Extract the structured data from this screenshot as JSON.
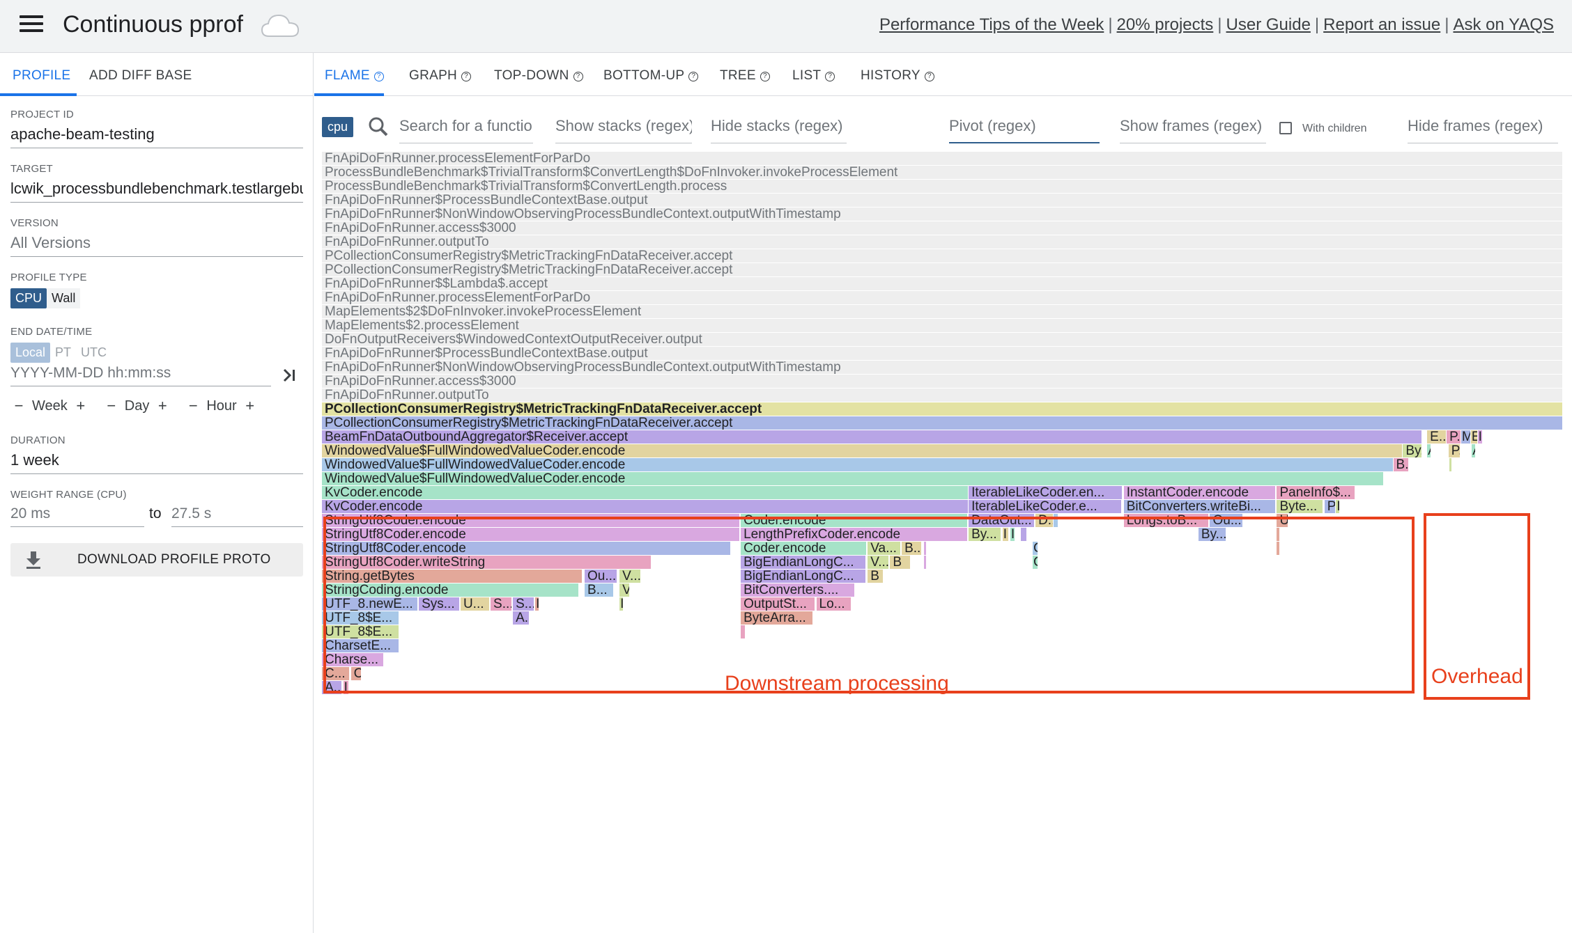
{
  "header": {
    "app_title": "Continuous pprof",
    "links": [
      "Performance Tips of the Week",
      "20% projects",
      "User Guide",
      "Report an issue",
      "Ask on YAQS"
    ],
    "separator": "|"
  },
  "left_tabs": {
    "profile": "PROFILE",
    "diff": "ADD DIFF BASE"
  },
  "fields": {
    "project_id_label": "PROJECT ID",
    "project_id": "apache-beam-testing",
    "target_label": "TARGET",
    "target": "lcwik_processbundlebenchmark.testlargebundle",
    "version_label": "VERSION",
    "version": "All Versions",
    "profile_type_label": "PROFILE TYPE",
    "profile_type_cpu": "CPU",
    "profile_type_wall": "Wall",
    "end_date_label": "END DATE/TIME",
    "tz_local": "Local",
    "tz_pt": "PT",
    "tz_utc": "UTC",
    "date_placeholder": "YYYY-MM-DD hh:mm:ss",
    "step_week": "Week",
    "step_day": "Day",
    "step_hour": "Hour",
    "step_minus": "−",
    "step_plus": "+",
    "duration_label": "DURATION",
    "duration": "1 week",
    "weight_label": "WEIGHT RANGE (CPU)",
    "weight_from": "20 ms",
    "weight_to_label": "to",
    "weight_to": "27.5 s",
    "download": "DOWNLOAD PROFILE PROTO"
  },
  "view_tabs": [
    "FLAME",
    "GRAPH",
    "TOP-DOWN",
    "BOTTOM-UP",
    "TREE",
    "LIST",
    "HISTORY"
  ],
  "active_view_tab": "FLAME",
  "filters": {
    "sample_type": "cpu",
    "search": "Search for a function/file...",
    "show_stacks": "Show stacks (regex)",
    "hide_stacks": "Hide stacks (regex)",
    "pivot": "Pivot (regex)",
    "show_frames": "Show frames (regex)",
    "with_children": "With children",
    "hide_frames": "Hide frames (regex)"
  },
  "annotations": {
    "downstream": "Downstream processing",
    "overhead": "Overhead",
    "color": "#e8401c"
  },
  "flame_colors": {
    "gray": "#eeeeee",
    "yellow": "#e3e2a3",
    "blue": "#a9b7e6",
    "purple": "#b8a5e6",
    "tan": "#e2d4a0",
    "cyan": "#a8c8e8",
    "mint": "#a6e3c8",
    "pink": "#d9a8e0",
    "rose": "#e8a3c0",
    "salmon": "#e3a89a",
    "olive": "#cfe0a1"
  },
  "flame_rows": [
    [
      {
        "l": "FnApiDoFnRunner.processElementForParDo",
        "c": "gray",
        "p": 0,
        "w": 1
      }
    ],
    [
      {
        "l": "ProcessBundleBenchmark$TrivialTransform$ConvertLength$DoFnInvoker.invokeProcessElement",
        "c": "gray",
        "p": 0,
        "w": 1
      }
    ],
    [
      {
        "l": "ProcessBundleBenchmark$TrivialTransform$ConvertLength.process",
        "c": "gray",
        "p": 0,
        "w": 1
      }
    ],
    [
      {
        "l": "FnApiDoFnRunner$ProcessBundleContextBase.output",
        "c": "gray",
        "p": 0,
        "w": 1
      }
    ],
    [
      {
        "l": "FnApiDoFnRunner$NonWindowObservingProcessBundleContext.outputWithTimestamp",
        "c": "gray",
        "p": 0,
        "w": 1
      }
    ],
    [
      {
        "l": "FnApiDoFnRunner.access$3000",
        "c": "gray",
        "p": 0,
        "w": 1
      }
    ],
    [
      {
        "l": "FnApiDoFnRunner.outputTo",
        "c": "gray",
        "p": 0,
        "w": 1
      }
    ],
    [
      {
        "l": "PCollectionConsumerRegistry$MetricTrackingFnDataReceiver.accept",
        "c": "gray",
        "p": 0,
        "w": 1
      }
    ],
    [
      {
        "l": "PCollectionConsumerRegistry$MetricTrackingFnDataReceiver.accept",
        "c": "gray",
        "p": 0,
        "w": 1
      }
    ],
    [
      {
        "l": "FnApiDoFnRunner$$Lambda$.accept",
        "c": "gray",
        "p": 0,
        "w": 1
      }
    ],
    [
      {
        "l": "FnApiDoFnRunner.processElementForParDo",
        "c": "gray",
        "p": 0,
        "w": 1
      }
    ],
    [
      {
        "l": "MapElements$2$DoFnInvoker.invokeProcessElement",
        "c": "gray",
        "p": 0,
        "w": 1
      }
    ],
    [
      {
        "l": "MapElements$2.processElement",
        "c": "gray",
        "p": 0,
        "w": 1
      }
    ],
    [
      {
        "l": "DoFnOutputReceivers$WindowedContextOutputReceiver.output",
        "c": "gray",
        "p": 0,
        "w": 1
      }
    ],
    [
      {
        "l": "FnApiDoFnRunner$ProcessBundleContextBase.output",
        "c": "gray",
        "p": 0,
        "w": 1
      }
    ],
    [
      {
        "l": "FnApiDoFnRunner$NonWindowObservingProcessBundleContext.outputWithTimestamp",
        "c": "gray",
        "p": 0,
        "w": 1
      }
    ],
    [
      {
        "l": "FnApiDoFnRunner.access$3000",
        "c": "gray",
        "p": 0,
        "w": 1
      }
    ],
    [
      {
        "l": "FnApiDoFnRunner.outputTo",
        "c": "gray",
        "p": 0,
        "w": 1
      }
    ],
    [
      {
        "l": "PCollectionConsumerRegistry$MetricTrackingFnDataReceiver.accept",
        "c": "yellow",
        "p": 0,
        "w": 1,
        "b": true
      }
    ],
    [
      {
        "l": "PCollectionConsumerRegistry$MetricTrackingFnDataReceiver.accept",
        "c": "blue",
        "p": 0,
        "w": 1
      }
    ],
    [
      {
        "l": "BeamFnDataOutboundAggregator$Receiver.accept",
        "c": "purple",
        "p": 0,
        "w": 0.8867
      },
      {
        "l": "E...",
        "c": "tan",
        "p": 0.8906,
        "w": 0.0156
      },
      {
        "l": "P...",
        "c": "rose",
        "p": 0.9063,
        "w": 0.0117
      },
      {
        "l": "M",
        "c": "blue",
        "p": 0.918,
        "w": 0.0078
      },
      {
        "l": "E",
        "c": "tan",
        "p": 0.9258,
        "w": 0.0055
      },
      {
        "l": "I",
        "c": "pink",
        "p": 0.9313,
        "w": 0.0039
      }
    ],
    [
      {
        "l": "WindowedValue$FullWindowedValueCoder.encode",
        "c": "tan",
        "p": 0,
        "w": 0.8711
      },
      {
        "l": "By...",
        "c": "olive",
        "p": 0.8711,
        "w": 0.0156
      },
      {
        "l": "A",
        "c": "mint",
        "p": 0.8906,
        "w": 0.0031
      },
      {
        "l": "P...",
        "c": "tan",
        "p": 0.9078,
        "w": 0.0094
      },
      {
        "l": "A",
        "c": "mint",
        "p": 0.9266,
        "w": 0.0031
      }
    ],
    [
      {
        "l": "WindowedValue$FullWindowedValueCoder.encode",
        "c": "cyan",
        "p": 0,
        "w": 0.8633
      },
      {
        "l": "B...",
        "c": "rose",
        "p": 0.8633,
        "w": 0.0125
      },
      {
        "l": "",
        "c": "olive",
        "p": 0.9086,
        "w": 0.0023
      }
    ],
    [
      {
        "l": "WindowedValue$FullWindowedValueCoder.encode",
        "c": "mint",
        "p": 0,
        "w": 0.8555
      }
    ],
    [
      {
        "l": "KvCoder.encode",
        "c": "mint",
        "p": 0,
        "w": 0.5211
      },
      {
        "l": "IterableLikeCoder.en...",
        "c": "purple",
        "p": 0.5211,
        "w": 0.1242
      },
      {
        "l": "InstantCoder.encode",
        "c": "pink",
        "p": 0.6461,
        "w": 0.1227
      },
      {
        "l": "PaneInfo$...",
        "c": "rose",
        "p": 0.7695,
        "w": 0.0633
      }
    ],
    [
      {
        "l": "KvCoder.encode",
        "c": "purple",
        "p": 0,
        "w": 0.5211
      },
      {
        "l": "IterableLikeCoder.e...",
        "c": "purple",
        "p": 0.5211,
        "w": 0.1234
      },
      {
        "l": "BitConverters.writeBi...",
        "c": "blue",
        "p": 0.6461,
        "w": 0.1227
      },
      {
        "l": "Byte...",
        "c": "olive",
        "p": 0.7695,
        "w": 0.0375
      },
      {
        "l": "P",
        "c": "blue",
        "p": 0.8078,
        "w": 0.0094
      },
      {
        "l": "I",
        "c": "olive",
        "p": 0.8172,
        "w": 0.0031
      }
    ],
    [
      {
        "l": "StringUtf8Coder.encode",
        "c": "pink",
        "p": 0,
        "w": 0.3367
      },
      {
        "l": "Coder.encode",
        "c": "mint",
        "p": 0.3375,
        "w": 0.1828
      },
      {
        "l": "DataOut...",
        "c": "purple",
        "p": 0.5211,
        "w": 0.0531
      },
      {
        "l": "D...",
        "c": "tan",
        "p": 0.575,
        "w": 0.0148
      },
      {
        "l": "",
        "c": "cyan",
        "p": 0.5898,
        "w": 0.0039
      },
      {
        "l": "Longs.toB...",
        "c": "rose",
        "p": 0.6461,
        "w": 0.0688
      },
      {
        "l": "Ou...",
        "c": "blue",
        "p": 0.7156,
        "w": 0.0266
      },
      {
        "l": "U",
        "c": "salmon",
        "p": 0.7695,
        "w": 0.0094
      }
    ],
    [
      {
        "l": "StringUtf8Coder.encode",
        "c": "pink",
        "p": 0,
        "w": 0.3367
      },
      {
        "l": "LengthPrefixCoder.encode",
        "c": "pink",
        "p": 0.3375,
        "w": 0.1828
      },
      {
        "l": "By...",
        "c": "olive",
        "p": 0.5211,
        "w": 0.0266
      },
      {
        "l": "I",
        "c": "tan",
        "p": 0.5484,
        "w": 0.0055
      },
      {
        "l": "I",
        "c": "mint",
        "p": 0.5547,
        "w": 0.0039
      },
      {
        "l": "",
        "c": "purple",
        "p": 0.5633,
        "w": 0.0047
      },
      {
        "l": "By...",
        "c": "blue",
        "p": 0.7063,
        "w": 0.0227
      },
      {
        "l": "",
        "c": "salmon",
        "p": 0.7695,
        "w": 0.0023
      }
    ],
    [
      {
        "l": "StringUtf8Coder.encode",
        "c": "blue",
        "p": 0,
        "w": 0.3297
      },
      {
        "l": "Coder.encode",
        "c": "mint",
        "p": 0.3375,
        "w": 0.1016
      },
      {
        "l": "Va...",
        "c": "olive",
        "p": 0.4398,
        "w": 0.0266
      },
      {
        "l": "B...",
        "c": "tan",
        "p": 0.4672,
        "w": 0.0164
      },
      {
        "l": "",
        "c": "pink",
        "p": 0.4852,
        "w": 0.0023
      },
      {
        "l": "C",
        "c": "cyan",
        "p": 0.5727,
        "w": 0.0047
      },
      {
        "l": "",
        "c": "salmon",
        "p": 0.7695,
        "w": 0.0023
      }
    ],
    [
      {
        "l": "StringUtf8Coder.writeString",
        "c": "rose",
        "p": 0,
        "w": 0.2656
      },
      {
        "l": "BigEndianLongC...",
        "c": "purple",
        "p": 0.3375,
        "w": 0.1008
      },
      {
        "l": "V...",
        "c": "olive",
        "p": 0.4398,
        "w": 0.0172
      },
      {
        "l": "B",
        "c": "tan",
        "p": 0.4578,
        "w": 0.0164
      },
      {
        "l": "",
        "c": "pink",
        "p": 0.4852,
        "w": 0.0023
      },
      {
        "l": "C",
        "c": "mint",
        "p": 0.5727,
        "w": 0.0047
      }
    ],
    [
      {
        "l": "String.getBytes",
        "c": "salmon",
        "p": 0,
        "w": 0.2102
      },
      {
        "l": "Ou...",
        "c": "purple",
        "p": 0.2117,
        "w": 0.0266
      },
      {
        "l": "V...",
        "c": "olive",
        "p": 0.2398,
        "w": 0.0172
      },
      {
        "l": "BigEndianLongC...",
        "c": "purple",
        "p": 0.3375,
        "w": 0.1008
      },
      {
        "l": "B",
        "c": "tan",
        "p": 0.4398,
        "w": 0.0125
      }
    ],
    [
      {
        "l": "StringCoding.encode",
        "c": "mint",
        "p": 0,
        "w": 0.207
      },
      {
        "l": "B...",
        "c": "cyan",
        "p": 0.2117,
        "w": 0.0234
      },
      {
        "l": "V",
        "c": "olive",
        "p": 0.2398,
        "w": 0.0086
      },
      {
        "l": "BitConverters....",
        "c": "pink",
        "p": 0.3375,
        "w": 0.0922
      }
    ],
    [
      {
        "l": "UTF_8.newE...",
        "c": "blue",
        "p": 0,
        "w": 0.0773
      },
      {
        "l": "Sys...",
        "c": "purple",
        "p": 0.0781,
        "w": 0.0328
      },
      {
        "l": "U...",
        "c": "tan",
        "p": 0.1117,
        "w": 0.0234
      },
      {
        "l": "S...",
        "c": "rose",
        "p": 0.1359,
        "w": 0.0172
      },
      {
        "l": "S...",
        "c": "purple",
        "p": 0.1539,
        "w": 0.0172
      },
      {
        "l": "I",
        "c": "salmon",
        "p": 0.1719,
        "w": 0.0031
      },
      {
        "l": "I",
        "c": "olive",
        "p": 0.2398,
        "w": 0.0031
      },
      {
        "l": "OutputSt...",
        "c": "rose",
        "p": 0.3375,
        "w": 0.0602
      },
      {
        "l": "Lo...",
        "c": "rose",
        "p": 0.3984,
        "w": 0.0281
      }
    ],
    [
      {
        "l": "UTF_8$E...",
        "c": "cyan",
        "p": 0,
        "w": 0.0625
      },
      {
        "l": "A...",
        "c": "purple",
        "p": 0.1539,
        "w": 0.0133
      },
      {
        "l": "ByteArra...",
        "c": "salmon",
        "p": 0.3375,
        "w": 0.0586
      }
    ],
    [
      {
        "l": "UTF_8$E...",
        "c": "olive",
        "p": 0,
        "w": 0.0625
      },
      {
        "l": "",
        "c": "rose",
        "p": 0.3375,
        "w": 0.0039
      }
    ],
    [
      {
        "l": "CharsetE...",
        "c": "blue",
        "p": 0,
        "w": 0.0625
      }
    ],
    [
      {
        "l": "Charse...",
        "c": "pink",
        "p": 0,
        "w": 0.05
      }
    ],
    [
      {
        "l": "C...",
        "c": "salmon",
        "p": 0,
        "w": 0.0227
      },
      {
        "l": "C",
        "c": "salmon",
        "p": 0.0234,
        "w": 0.0086
      }
    ],
    [
      {
        "l": "A...",
        "c": "purple",
        "p": 0,
        "w": 0.0164
      },
      {
        "l": "I",
        "c": "rose",
        "p": 0.0172,
        "w": 0.0047
      }
    ]
  ]
}
